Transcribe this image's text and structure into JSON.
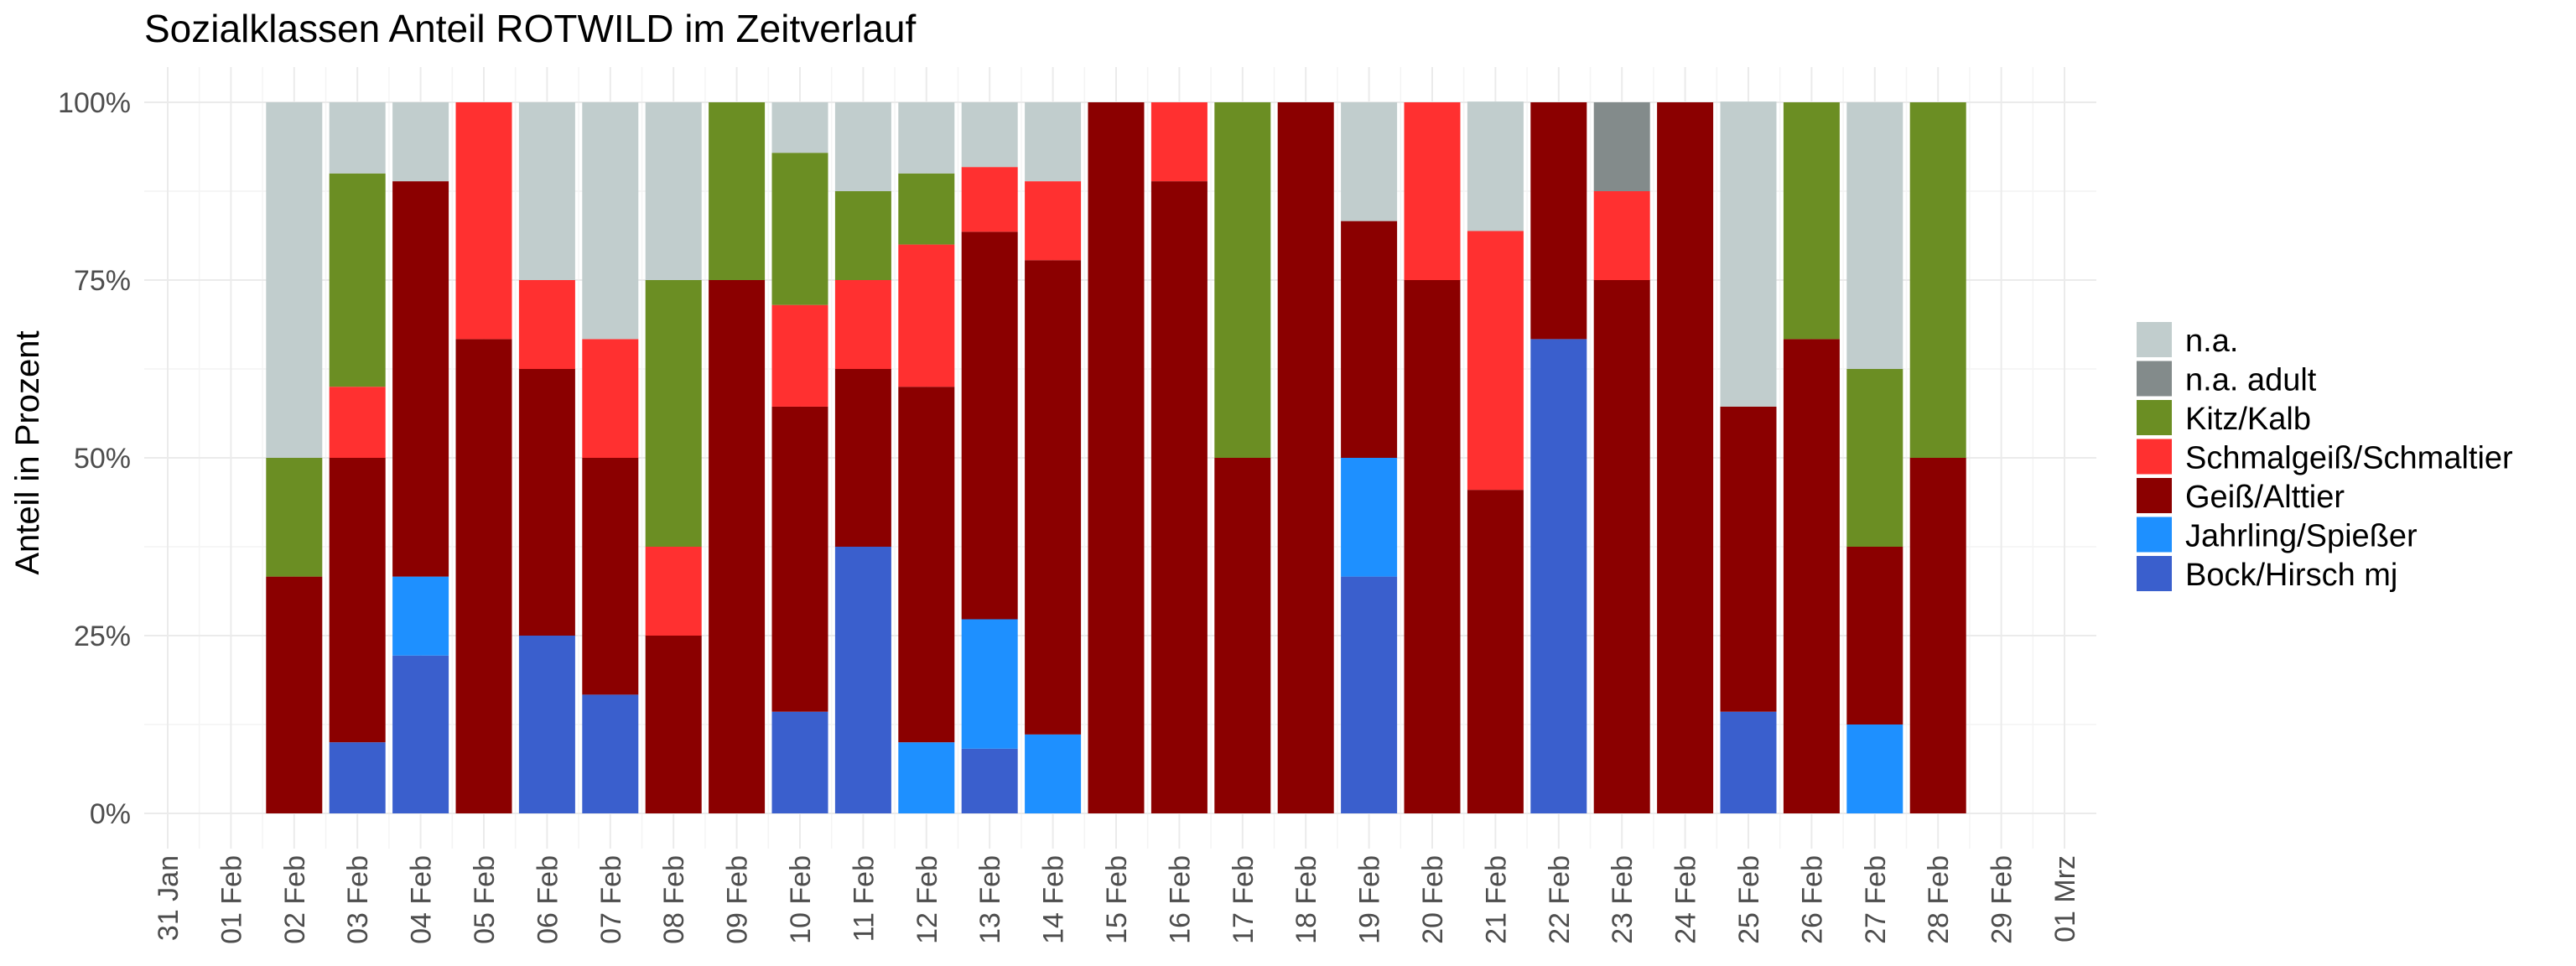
{
  "chart_data": {
    "type": "bar",
    "stacked": true,
    "title": "Sozialklassen Anteil ROTWILD im Zeitverlauf",
    "xlabel": "",
    "ylabel": "Anteil in Prozent",
    "ylim": [
      0,
      1
    ],
    "yticks": [
      {
        "value": 0,
        "label": "0%"
      },
      {
        "value": 0.25,
        "label": "25%"
      },
      {
        "value": 0.5,
        "label": "50%"
      },
      {
        "value": 0.75,
        "label": "75%"
      },
      {
        "value": 1,
        "label": "100%"
      }
    ],
    "x_ticks": [
      "31 Jan",
      "01 Feb",
      "02 Feb",
      "03 Feb",
      "04 Feb",
      "05 Feb",
      "06 Feb",
      "07 Feb",
      "08 Feb",
      "09 Feb",
      "10 Feb",
      "11 Feb",
      "12 Feb",
      "13 Feb",
      "14 Feb",
      "15 Feb",
      "16 Feb",
      "17 Feb",
      "18 Feb",
      "19 Feb",
      "20 Feb",
      "21 Feb",
      "22 Feb",
      "23 Feb",
      "24 Feb",
      "25 Feb",
      "26 Feb",
      "27 Feb",
      "28 Feb",
      "29 Feb",
      "01 Mrz"
    ],
    "categories": [
      "02 Feb",
      "03 Feb",
      "04 Feb",
      "05 Feb",
      "06 Feb",
      "07 Feb",
      "08 Feb",
      "09 Feb",
      "10 Feb",
      "11 Feb",
      "12 Feb",
      "13 Feb",
      "14 Feb",
      "15 Feb",
      "16 Feb",
      "17 Feb",
      "18 Feb",
      "19 Feb",
      "20 Feb",
      "21 Feb",
      "22 Feb",
      "23 Feb",
      "24 Feb",
      "25 Feb",
      "26 Feb",
      "27 Feb",
      "28 Feb"
    ],
    "series": [
      {
        "name": "Bock/Hirsch mj",
        "color": "#3a5fcd",
        "values": [
          0,
          0.1,
          0.222,
          0,
          0.25,
          0.167,
          0,
          0,
          0.143,
          0.375,
          0,
          0.091,
          0,
          0,
          0,
          0,
          0,
          0.333,
          0,
          0,
          0.667,
          0,
          0,
          0.143,
          0,
          0,
          0
        ]
      },
      {
        "name": "Jahrling/Spießer",
        "color": "#1e90ff",
        "values": [
          0,
          0,
          0.111,
          0,
          0,
          0,
          0,
          0,
          0,
          0,
          0.1,
          0.182,
          0.111,
          0,
          0,
          0,
          0,
          0.167,
          0,
          0,
          0,
          0,
          0,
          0,
          0,
          0.125,
          0
        ]
      },
      {
        "name": "Geiß/Alttier",
        "color": "#8b0000",
        "values": [
          0.333,
          0.4,
          0.556,
          0.667,
          0.375,
          0.333,
          0.25,
          0.75,
          0.429,
          0.25,
          0.5,
          0.545,
          0.667,
          1,
          0.889,
          0.5,
          1,
          0.333,
          0.75,
          0.455,
          0.333,
          0.75,
          1,
          0.429,
          0.667,
          0.25,
          0.5
        ]
      },
      {
        "name": "Schmalgeiß/Schmaltier",
        "color": "#ff3030",
        "values": [
          0,
          0.1,
          0,
          0.333,
          0.125,
          0.167,
          0.125,
          0,
          0.143,
          0.125,
          0.2,
          0.091,
          0.111,
          0,
          0.111,
          0,
          0,
          0,
          0.25,
          0.364,
          0,
          0.125,
          0,
          0,
          0,
          0,
          0
        ]
      },
      {
        "name": "Kitz/Kalb",
        "color": "#6b8e23",
        "values": [
          0.167,
          0.3,
          0,
          0,
          0,
          0,
          0.375,
          0.25,
          0.214,
          0.125,
          0.1,
          0,
          0,
          0,
          0,
          0.5,
          0,
          0,
          0,
          0,
          0,
          0,
          0,
          0,
          0.333,
          0.25,
          0.5
        ]
      },
      {
        "name": "n.a. adult",
        "color": "#838b8b",
        "values": [
          0,
          0,
          0,
          0,
          0,
          0,
          0,
          0,
          0,
          0,
          0,
          0,
          0,
          0,
          0,
          0,
          0,
          0,
          0,
          0,
          0,
          0.125,
          0,
          0,
          0,
          0,
          0
        ]
      },
      {
        "name": "n.a.",
        "color": "#c1cdcd",
        "values": [
          0.5,
          0.1,
          0.111,
          0,
          0.25,
          0.333,
          0.25,
          0,
          0.071,
          0.125,
          0.1,
          0.091,
          0.111,
          0,
          0,
          0,
          0,
          0.167,
          0,
          0.182,
          0,
          0,
          0,
          0.429,
          0,
          0.375,
          0
        ]
      }
    ],
    "legend": {
      "position": "right",
      "order": [
        "n.a.",
        "n.a. adult",
        "Kitz/Kalb",
        "Schmalgeiß/Schmaltier",
        "Geiß/Alttier",
        "Jahrling/Spießer",
        "Bock/Hirsch mj"
      ]
    },
    "grid": true
  }
}
